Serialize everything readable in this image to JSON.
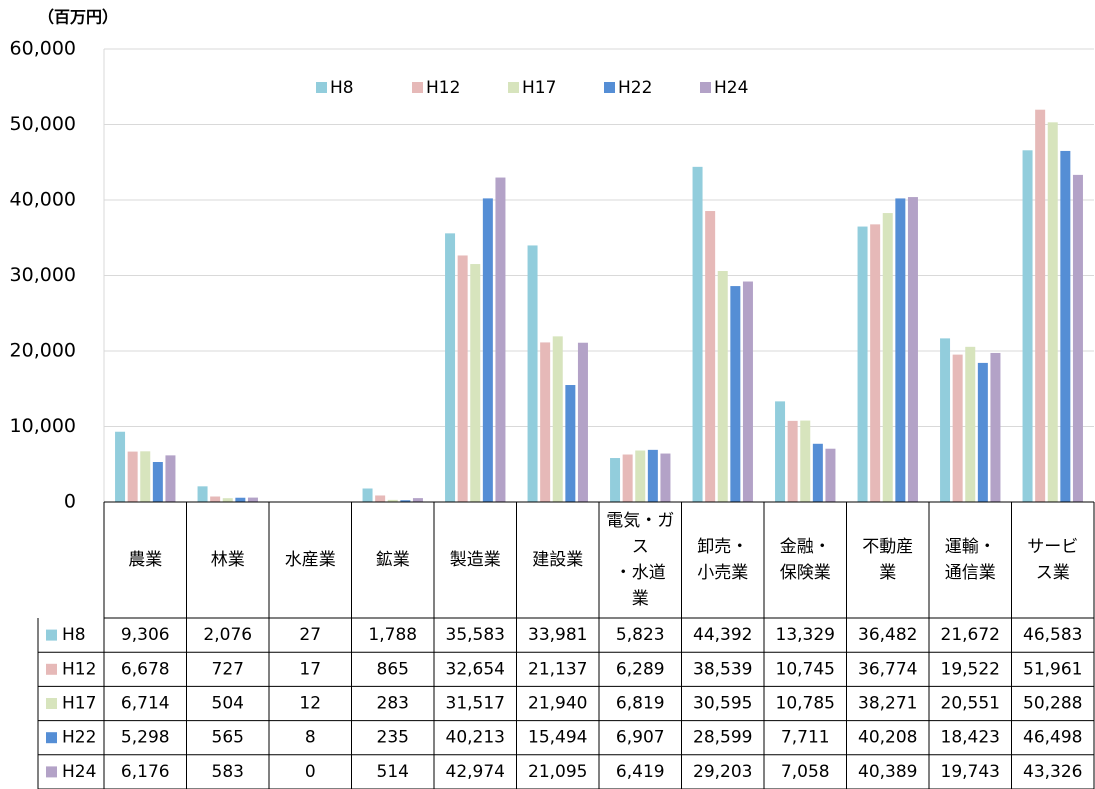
{
  "chart_data": {
    "type": "bar",
    "unit_label": "（百万円）",
    "categories": [
      "農業",
      "林業",
      "水産業",
      "鉱業",
      "製造業",
      "建設業",
      "電気・ガ\nス\n・水道\n業",
      "卸売・\n小売業",
      "金融・\n保険業",
      "不動産\n業",
      "運輸・\n通信業",
      "サービ\nス業"
    ],
    "series": [
      {
        "name": "H8",
        "color": "#92cddc",
        "values": [
          9306,
          2076,
          27,
          1788,
          35583,
          33981,
          5823,
          44392,
          13329,
          36482,
          21672,
          46583
        ],
        "value_labels": [
          "9,306",
          "2,076",
          "27",
          "1,788",
          "35,583",
          "33,981",
          "5,823",
          "44,392",
          "13,329",
          "36,482",
          "21,672",
          "46,583"
        ]
      },
      {
        "name": "H12",
        "color": "#e6b9b8",
        "values": [
          6678,
          727,
          17,
          865,
          32654,
          21137,
          6289,
          38539,
          10745,
          36774,
          19522,
          51961
        ],
        "value_labels": [
          "6,678",
          "727",
          "17",
          "865",
          "32,654",
          "21,137",
          "6,289",
          "38,539",
          "10,745",
          "36,774",
          "19,522",
          "51,961"
        ]
      },
      {
        "name": "H17",
        "color": "#d7e4bd",
        "values": [
          6714,
          504,
          12,
          283,
          31517,
          21940,
          6819,
          30595,
          10785,
          38271,
          20551,
          50288
        ],
        "value_labels": [
          "6,714",
          "504",
          "12",
          "283",
          "31,517",
          "21,940",
          "6,819",
          "30,595",
          "10,785",
          "38,271",
          "20,551",
          "50,288"
        ]
      },
      {
        "name": "H22",
        "color": "#558ed5",
        "values": [
          5298,
          565,
          8,
          235,
          40213,
          15494,
          6907,
          28599,
          7711,
          40208,
          18423,
          46498
        ],
        "value_labels": [
          "5,298",
          "565",
          "8",
          "235",
          "40,213",
          "15,494",
          "6,907",
          "28,599",
          "7,711",
          "40,208",
          "18,423",
          "46,498"
        ]
      },
      {
        "name": "H24",
        "color": "#b3a2c7",
        "values": [
          6176,
          583,
          0,
          514,
          42974,
          21095,
          6419,
          29203,
          7058,
          40389,
          19743,
          43326
        ],
        "value_labels": [
          "6,176",
          "583",
          "0",
          "514",
          "42,974",
          "21,095",
          "6,419",
          "29,203",
          "7,058",
          "40,389",
          "19,743",
          "43,326"
        ]
      }
    ],
    "ylim": [
      0,
      60000
    ],
    "yticks": [
      0,
      {
        "value": 10000,
        "label": "10,000"
      },
      {
        "value": 20000,
        "label": "20,000"
      },
      {
        "value": 30000,
        "label": "30,000"
      },
      {
        "value": 40000,
        "label": "40,000"
      },
      {
        "value": 50000,
        "label": "50,000"
      },
      {
        "value": 60000,
        "label": "60,000"
      }
    ],
    "grid": true,
    "legend": "top"
  }
}
